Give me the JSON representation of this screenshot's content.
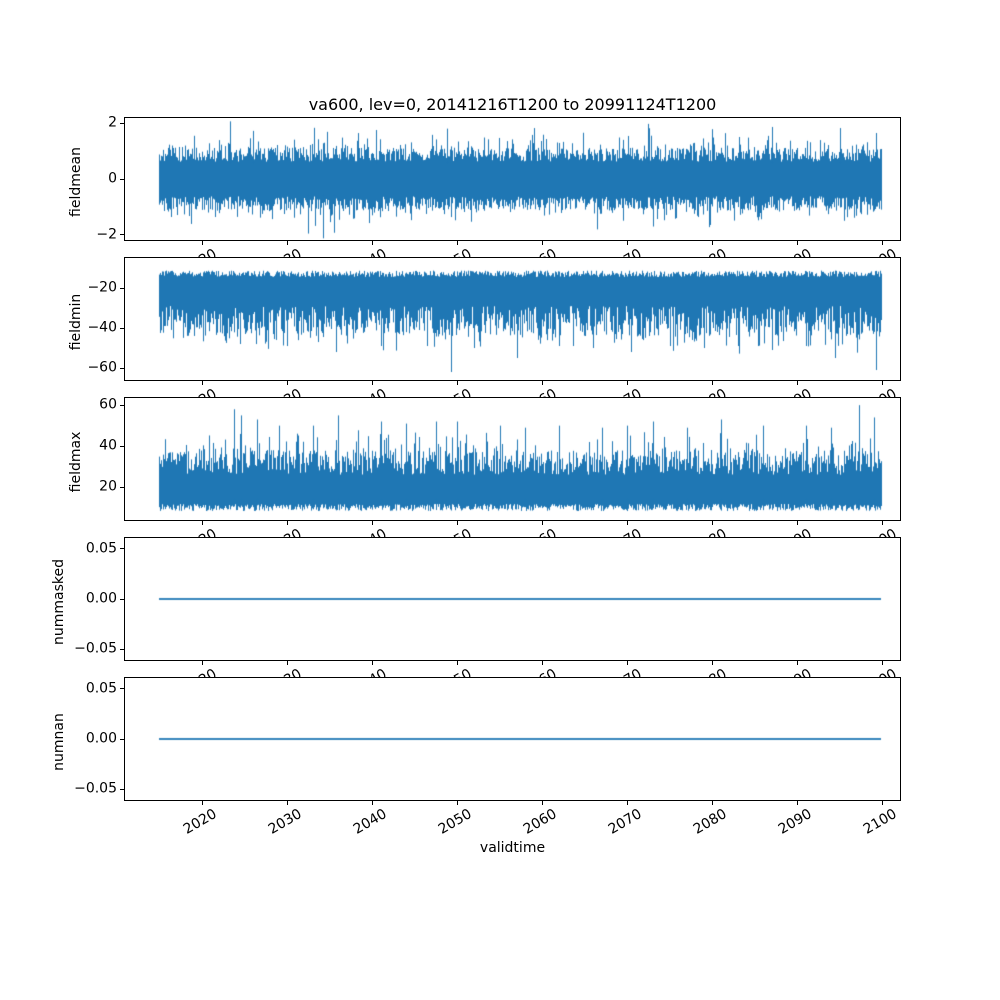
{
  "figure": {
    "title": "va600, lev=0, 20141216T1200 to 20991124T1200",
    "xlabel": "validtime",
    "background": "#ffffff",
    "line_color": "#1f77b4",
    "axis_color": "#000000",
    "text_color": "#000000"
  },
  "x_axis": {
    "label": "validtime",
    "tick_labels": [
      "2020",
      "2030",
      "2040",
      "2050",
      "2060",
      "2070",
      "2080",
      "2090",
      "2100"
    ],
    "tick_years": [
      2020,
      2030,
      2040,
      2050,
      2060,
      2070,
      2080,
      2090,
      2100
    ],
    "xlim": [
      2010.9,
      2102.1
    ],
    "data_start_year": 2014.96,
    "data_end_year": 2099.9,
    "tick_rotation_deg": 30
  },
  "chart_data": [
    {
      "type": "line",
      "ylabel": "fieldmean",
      "ytick_labels": [
        "2",
        "0",
        "−2"
      ],
      "ytick_values": [
        2,
        0,
        -2
      ],
      "ylim": [
        -2.18,
        2.18
      ],
      "summary": {
        "mean": 0,
        "typical_band": [
          -1.1,
          1.1
        ],
        "min": -2.12,
        "max": 2.06
      },
      "noise": {
        "seed": 11,
        "style": "symmetric",
        "core": [
          0.62,
          1.12
        ],
        "hair_prob": 0.32,
        "hair_pow": 1.7,
        "hair_max": 0.62,
        "rare_prob": 0.012,
        "rare_add": 0.32,
        "spike_base": 0.6
      },
      "spikes": [
        [
          2023.3,
          2.06
        ],
        [
          2026.0,
          1.72
        ],
        [
          2032.5,
          -1.95
        ],
        [
          2034.2,
          -2.12
        ],
        [
          2035.5,
          -1.92
        ],
        [
          2040.5,
          1.75
        ],
        [
          2048.8,
          1.8
        ],
        [
          2059.0,
          1.82
        ],
        [
          2066.5,
          -1.8
        ],
        [
          2072.5,
          1.97
        ],
        [
          2080.0,
          1.78
        ],
        [
          2087.0,
          1.86
        ],
        [
          2095.0,
          1.82
        ]
      ]
    },
    {
      "type": "line",
      "ylabel": "fieldmin",
      "ytick_labels": [
        "−20",
        "−40",
        "−60"
      ],
      "ytick_values": [
        -20,
        -40,
        -60
      ],
      "ylim": [
        -66,
        -5
      ],
      "summary": {
        "typical_band": [
          -44,
          -11
        ],
        "min": -62,
        "max": -11
      },
      "noise": {
        "seed": 22,
        "style": "band",
        "edge": [
          -11.3,
          -14.5
        ],
        "body": [
          -29,
          -44
        ],
        "hair_prob": 0.33,
        "hair_max": 9,
        "direction": -1,
        "spike_base": -14
      },
      "spikes": [
        [
          2024.5,
          -48
        ],
        [
          2030.0,
          -49
        ],
        [
          2035.8,
          -52
        ],
        [
          2041.0,
          -49
        ],
        [
          2049.3,
          -62
        ],
        [
          2052.0,
          -50
        ],
        [
          2057.0,
          -55
        ],
        [
          2062.0,
          -49
        ],
        [
          2066.0,
          -50
        ],
        [
          2070.5,
          -52
        ],
        [
          2075.0,
          -49
        ],
        [
          2079.0,
          -50
        ],
        [
          2083.0,
          -49
        ],
        [
          2087.0,
          -51
        ],
        [
          2091.0,
          -49
        ],
        [
          2094.5,
          -55
        ],
        [
          2099.3,
          -61
        ]
      ]
    },
    {
      "type": "line",
      "ylabel": "fieldmax",
      "ytick_labels": [
        "60",
        "40",
        "20"
      ],
      "ytick_values": [
        60,
        40,
        20
      ],
      "ylim": [
        3.9,
        63.5
      ],
      "summary": {
        "typical_band": [
          8,
          40
        ],
        "min": 8,
        "max": 60
      },
      "noise": {
        "seed": 33,
        "style": "band",
        "edge": [
          8.3,
          11.7
        ],
        "body": [
          26,
          38
        ],
        "hair_prob": 0.33,
        "hair_max": 10,
        "direction": 1,
        "spike_base": 14
      },
      "spikes": [
        [
          2023.8,
          58
        ],
        [
          2024.6,
          55
        ],
        [
          2026.5,
          53
        ],
        [
          2029.0,
          50
        ],
        [
          2033.0,
          50
        ],
        [
          2036.0,
          55
        ],
        [
          2041.0,
          52
        ],
        [
          2044.0,
          51
        ],
        [
          2047.5,
          52
        ],
        [
          2050.0,
          52
        ],
        [
          2055.0,
          50
        ],
        [
          2058.0,
          49
        ],
        [
          2062.0,
          50
        ],
        [
          2067.0,
          49
        ],
        [
          2070.0,
          50
        ],
        [
          2073.0,
          52
        ],
        [
          2077.0,
          49
        ],
        [
          2081.0,
          53
        ],
        [
          2086.0,
          50
        ],
        [
          2091.0,
          50
        ],
        [
          2094.0,
          49
        ],
        [
          2097.3,
          60
        ],
        [
          2099.0,
          54
        ]
      ]
    },
    {
      "type": "line",
      "ylabel": "nummasked",
      "ytick_labels": [
        "0.05",
        "0.00",
        "−0.05"
      ],
      "ytick_values": [
        0.05,
        0,
        -0.05
      ],
      "ylim": [
        -0.0605,
        0.0605
      ],
      "flat_value": 0.0,
      "summary": {
        "constant": 0.0
      }
    },
    {
      "type": "line",
      "ylabel": "numnan",
      "ytick_labels": [
        "0.05",
        "0.00",
        "−0.05"
      ],
      "ytick_values": [
        0.05,
        0,
        -0.05
      ],
      "ylim": [
        -0.0605,
        0.0605
      ],
      "flat_value": 0.0,
      "summary": {
        "constant": 0.0
      }
    }
  ]
}
